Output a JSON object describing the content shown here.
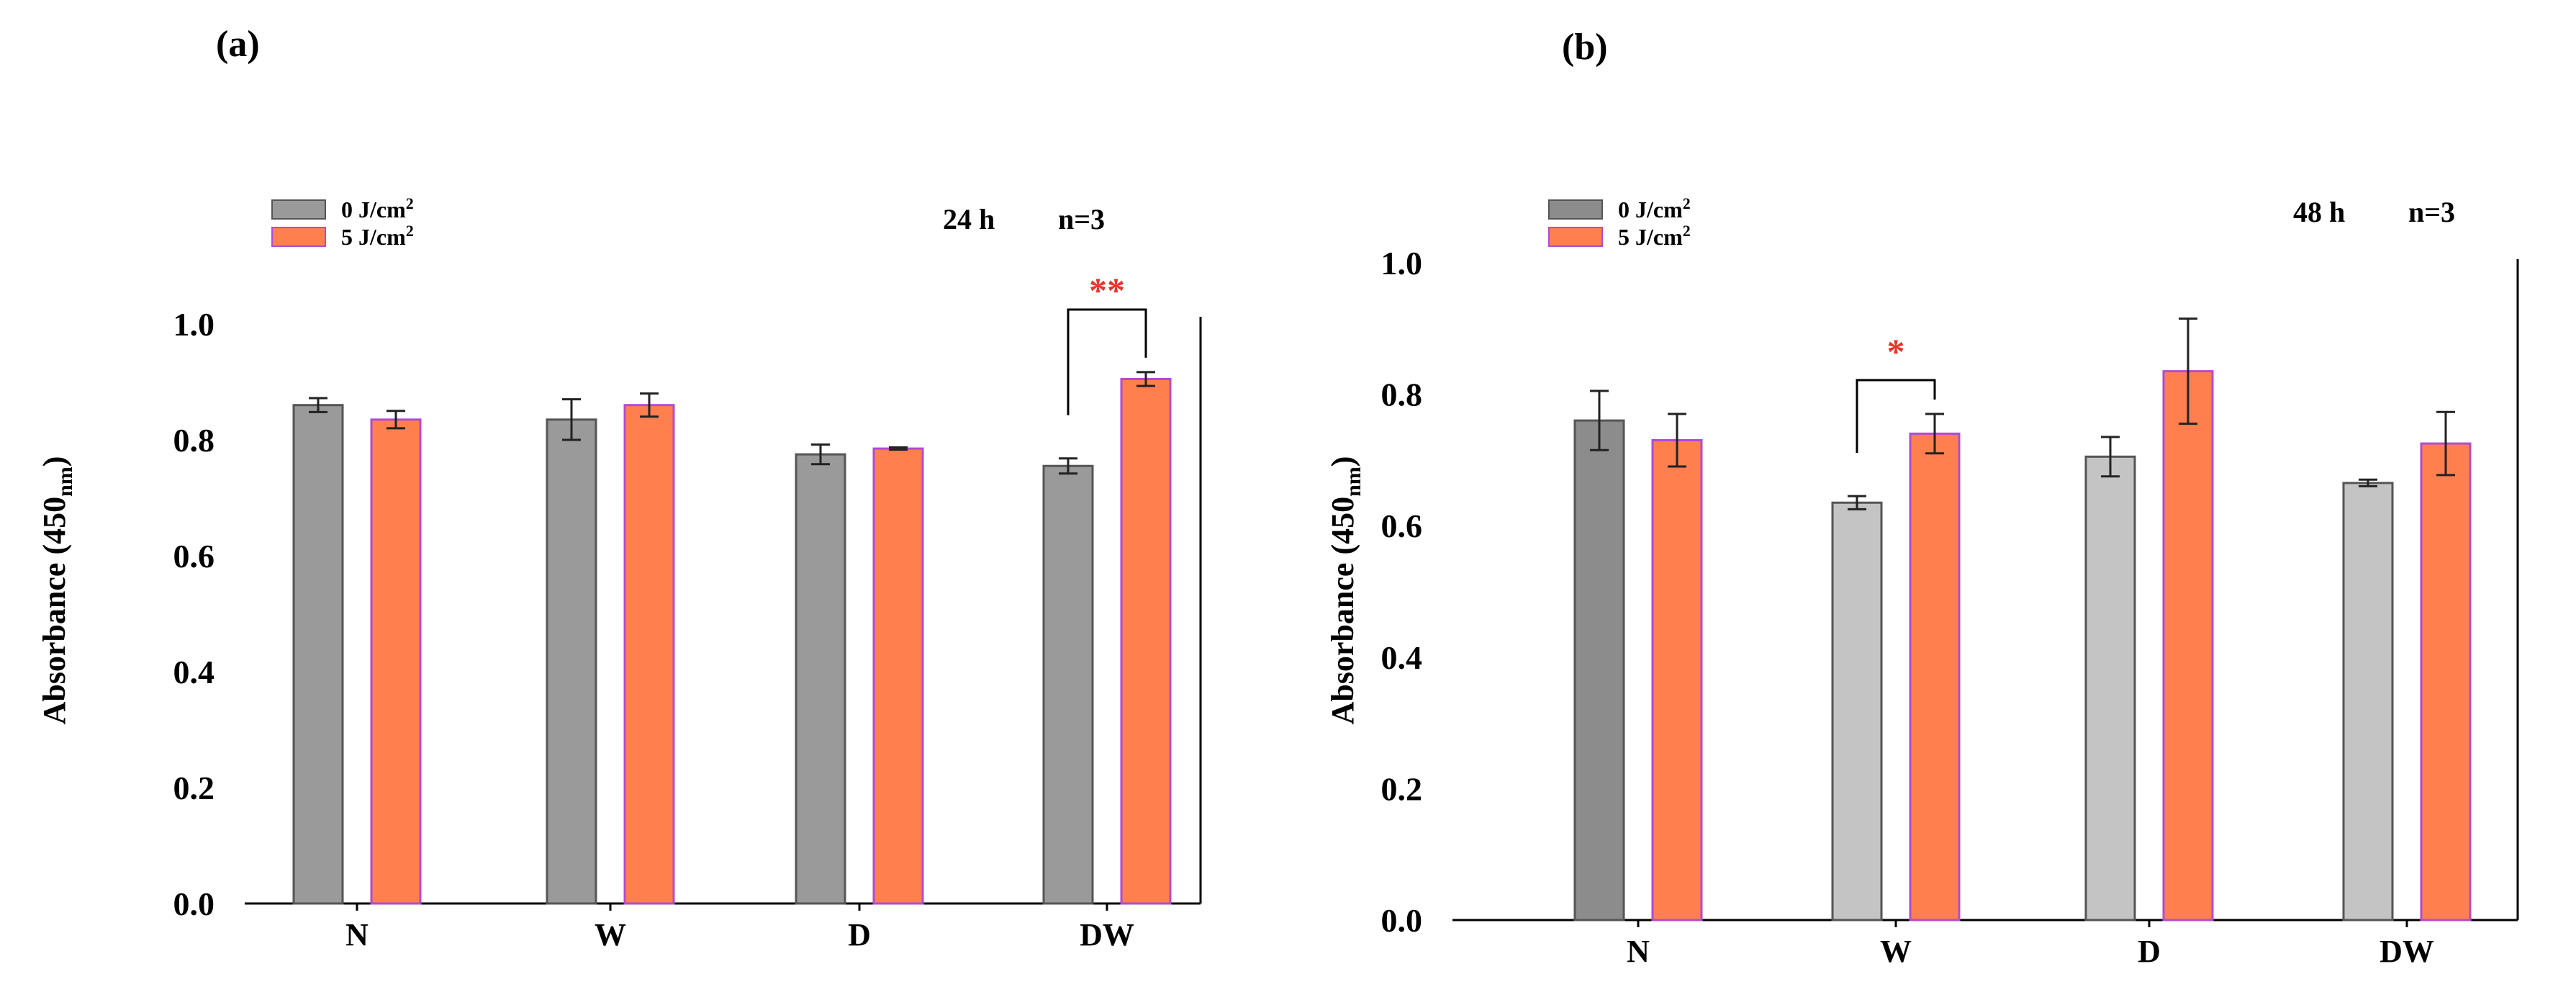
{
  "figure": {
    "panel_labels": [
      "(a)",
      "(b)"
    ]
  },
  "colors": {
    "control_a": "#9a9a9a",
    "control_b_n": "#8c8c8c",
    "control_b": "#c4c4c4",
    "treated": "#ff7f4e",
    "treated_stroke": "#b04bd4",
    "sig": "#e8352b"
  },
  "chart_data": [
    {
      "type": "bar",
      "panel": "(a)",
      "annotation": {
        "time": "24 h",
        "n": "n=3"
      },
      "categories": [
        "N",
        "W",
        "D",
        "DW"
      ],
      "ylabel_main": "Absorbance (450",
      "ylabel_sub": "nm",
      "ylabel_close": ")",
      "ylim": [
        0,
        1.0
      ],
      "yticks": [
        "0.0",
        "0.2",
        "0.4",
        "0.6",
        "0.8",
        "1.0"
      ],
      "legend_position": "top-left",
      "series": [
        {
          "name": "0 J/cm",
          "sup": "2",
          "values": [
            0.86,
            0.835,
            0.775,
            0.755
          ],
          "errors": [
            0.012,
            0.035,
            0.017,
            0.013
          ]
        },
        {
          "name": "5 J/cm",
          "sup": "2",
          "values": [
            0.835,
            0.86,
            0.785,
            0.905
          ],
          "errors": [
            0.015,
            0.02,
            0.002,
            0.012
          ]
        }
      ],
      "significance": [
        {
          "category": "DW",
          "label": "**"
        }
      ]
    },
    {
      "type": "bar",
      "panel": "(b)",
      "annotation": {
        "time": "48 h",
        "n": "n=3"
      },
      "categories": [
        "N",
        "W",
        "D",
        "DW"
      ],
      "ylabel_main": "Absorbance (450",
      "ylabel_sub": "nm",
      "ylabel_close": ")",
      "ylim": [
        0,
        1.0
      ],
      "yticks": [
        "0.0",
        "0.2",
        "0.4",
        "0.6",
        "0.8",
        "1.0"
      ],
      "legend_position": "top-left",
      "series": [
        {
          "name": "0 J/cm",
          "sup": "2",
          "values": [
            0.76,
            0.635,
            0.705,
            0.665
          ],
          "errors": [
            0.045,
            0.01,
            0.03,
            0.005
          ]
        },
        {
          "name": "5 J/cm",
          "sup": "2",
          "values": [
            0.73,
            0.74,
            0.835,
            0.725
          ],
          "errors": [
            0.04,
            0.03,
            0.08,
            0.048
          ]
        }
      ],
      "significance": [
        {
          "category": "W",
          "label": "*"
        }
      ]
    }
  ]
}
